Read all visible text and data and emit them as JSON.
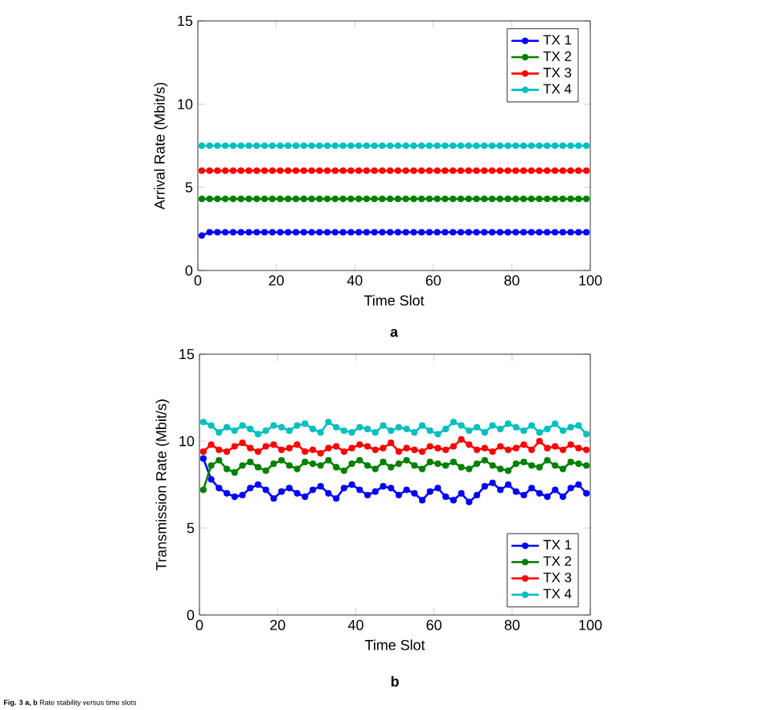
{
  "chart_data": [
    {
      "type": "line",
      "xlabel": "Time Slot",
      "ylabel": "Arrival Rate (Mbit/s)",
      "marker": "circle",
      "line_style": "solid",
      "legend": "top right",
      "grid": false,
      "xlim": [
        0,
        100
      ],
      "ylim": [
        0,
        15
      ],
      "xticks": [
        0,
        20,
        40,
        60,
        80,
        100
      ],
      "yticks": [
        0,
        5,
        10,
        15
      ],
      "x": [
        1,
        3,
        5,
        7,
        9,
        11,
        13,
        15,
        17,
        19,
        21,
        23,
        25,
        27,
        29,
        31,
        33,
        35,
        37,
        39,
        41,
        43,
        45,
        47,
        49,
        51,
        53,
        55,
        57,
        59,
        61,
        63,
        65,
        67,
        69,
        71,
        73,
        75,
        77,
        79,
        81,
        83,
        85,
        87,
        89,
        91,
        93,
        95,
        97,
        99
      ],
      "series": [
        {
          "name": "TX 1",
          "color": "#0000ff",
          "values": [
            2.1,
            2.3,
            2.3,
            2.3,
            2.3,
            2.3,
            2.3,
            2.3,
            2.3,
            2.3,
            2.3,
            2.3,
            2.3,
            2.3,
            2.3,
            2.3,
            2.3,
            2.3,
            2.3,
            2.3,
            2.3,
            2.3,
            2.3,
            2.3,
            2.3,
            2.3,
            2.3,
            2.3,
            2.3,
            2.3,
            2.3,
            2.3,
            2.3,
            2.3,
            2.3,
            2.3,
            2.3,
            2.3,
            2.3,
            2.3,
            2.3,
            2.3,
            2.3,
            2.3,
            2.3,
            2.3,
            2.3,
            2.3,
            2.3,
            2.3
          ]
        },
        {
          "name": "TX 2",
          "color": "#008000",
          "values": [
            4.3,
            4.3,
            4.3,
            4.3,
            4.3,
            4.3,
            4.3,
            4.3,
            4.3,
            4.3,
            4.3,
            4.3,
            4.3,
            4.3,
            4.3,
            4.3,
            4.3,
            4.3,
            4.3,
            4.3,
            4.3,
            4.3,
            4.3,
            4.3,
            4.3,
            4.3,
            4.3,
            4.3,
            4.3,
            4.3,
            4.3,
            4.3,
            4.3,
            4.3,
            4.3,
            4.3,
            4.3,
            4.3,
            4.3,
            4.3,
            4.3,
            4.3,
            4.3,
            4.3,
            4.3,
            4.3,
            4.3,
            4.3,
            4.3,
            4.3
          ]
        },
        {
          "name": "TX 3",
          "color": "#ff0000",
          "values": [
            6,
            6,
            6,
            6,
            6,
            6,
            6,
            6,
            6,
            6,
            6,
            6,
            6,
            6,
            6,
            6,
            6,
            6,
            6,
            6,
            6,
            6,
            6,
            6,
            6,
            6,
            6,
            6,
            6,
            6,
            6,
            6,
            6,
            6,
            6,
            6,
            6,
            6,
            6,
            6,
            6,
            6,
            6,
            6,
            6,
            6,
            6,
            6,
            6,
            6
          ]
        },
        {
          "name": "TX 4",
          "color": "#00bfbf",
          "values": [
            7.5,
            7.5,
            7.5,
            7.5,
            7.5,
            7.5,
            7.5,
            7.5,
            7.5,
            7.5,
            7.5,
            7.5,
            7.5,
            7.5,
            7.5,
            7.5,
            7.5,
            7.5,
            7.5,
            7.5,
            7.5,
            7.5,
            7.5,
            7.5,
            7.5,
            7.5,
            7.5,
            7.5,
            7.5,
            7.5,
            7.5,
            7.5,
            7.5,
            7.5,
            7.5,
            7.5,
            7.5,
            7.5,
            7.5,
            7.5,
            7.5,
            7.5,
            7.5,
            7.5,
            7.5,
            7.5,
            7.5,
            7.5,
            7.5,
            7.5
          ]
        }
      ],
      "annotations": [
        "**a**"
      ]
    },
    {
      "type": "line",
      "xlabel": "Time Slot",
      "ylabel": "Transmission Rate (Mbit/s)",
      "marker": "circle",
      "line_style": "solid",
      "legend": "bottom right",
      "grid": false,
      "xlim": [
        0,
        100
      ],
      "ylim": [
        0,
        15
      ],
      "xticks": [
        0,
        20,
        40,
        60,
        80,
        100
      ],
      "yticks": [
        0,
        5,
        10,
        15
      ],
      "x": [
        1,
        3,
        5,
        7,
        9,
        11,
        13,
        15,
        17,
        19,
        21,
        23,
        25,
        27,
        29,
        31,
        33,
        35,
        37,
        39,
        41,
        43,
        45,
        47,
        49,
        51,
        53,
        55,
        57,
        59,
        61,
        63,
        65,
        67,
        69,
        71,
        73,
        75,
        77,
        79,
        81,
        83,
        85,
        87,
        89,
        91,
        93,
        95,
        97,
        99
      ],
      "series": [
        {
          "name": "TX 1",
          "color": "#0000ff",
          "values": [
            9.0,
            7.8,
            7.3,
            7.0,
            6.8,
            6.9,
            7.3,
            7.5,
            7.2,
            6.7,
            7.1,
            7.3,
            7.0,
            6.8,
            7.2,
            7.4,
            7.0,
            6.7,
            7.3,
            7.5,
            7.2,
            6.9,
            7.1,
            7.4,
            7.3,
            6.9,
            7.2,
            7.0,
            6.6,
            7.1,
            7.3,
            6.8,
            6.6,
            7.0,
            6.5,
            6.9,
            7.4,
            7.6,
            7.2,
            7.5,
            7.1,
            6.9,
            7.3,
            7.0,
            6.8,
            7.2,
            6.8,
            7.3,
            7.5,
            7.0
          ]
        },
        {
          "name": "TX 2",
          "color": "#008000",
          "values": [
            7.2,
            8.6,
            8.9,
            8.4,
            8.2,
            8.6,
            8.8,
            8.5,
            8.3,
            8.7,
            8.9,
            8.6,
            8.4,
            8.8,
            8.7,
            8.6,
            8.9,
            8.5,
            8.3,
            8.7,
            8.9,
            8.6,
            8.4,
            8.8,
            8.5,
            8.7,
            8.9,
            8.6,
            8.4,
            8.8,
            8.7,
            8.6,
            8.8,
            8.5,
            8.4,
            8.7,
            8.9,
            8.6,
            8.4,
            8.3,
            8.7,
            8.8,
            8.6,
            8.5,
            8.9,
            8.6,
            8.4,
            8.8,
            8.7,
            8.6
          ]
        },
        {
          "name": "TX 3",
          "color": "#ff0000",
          "values": [
            9.4,
            9.8,
            9.5,
            9.4,
            9.7,
            9.9,
            9.6,
            9.4,
            9.7,
            9.8,
            9.5,
            9.6,
            9.8,
            9.4,
            9.5,
            9.3,
            9.6,
            9.7,
            9.4,
            9.6,
            9.8,
            9.7,
            9.5,
            9.6,
            9.9,
            9.4,
            9.6,
            9.5,
            9.4,
            9.7,
            9.6,
            9.5,
            9.7,
            10.1,
            9.8,
            9.5,
            9.6,
            9.4,
            9.7,
            9.5,
            9.6,
            9.8,
            9.5,
            10.0,
            9.6,
            9.7,
            9.5,
            9.8,
            9.6,
            9.5
          ]
        },
        {
          "name": "TX 4",
          "color": "#00bfbf",
          "values": [
            11.1,
            10.9,
            10.5,
            10.8,
            10.6,
            10.9,
            10.7,
            10.4,
            10.6,
            10.9,
            10.8,
            10.6,
            10.9,
            11.0,
            10.7,
            10.5,
            11.1,
            10.8,
            10.6,
            10.5,
            10.8,
            10.7,
            10.5,
            10.9,
            10.6,
            10.8,
            10.7,
            10.5,
            10.9,
            10.6,
            10.4,
            10.7,
            11.1,
            10.9,
            10.6,
            10.8,
            10.5,
            10.9,
            10.7,
            11.0,
            10.8,
            10.6,
            10.9,
            10.5,
            10.7,
            11.0,
            10.6,
            10.8,
            10.9,
            10.4
          ]
        }
      ],
      "annotations": [
        "**b**",
        "**Fig. 3 a, b** Rate stability versus time slots"
      ]
    }
  ]
}
